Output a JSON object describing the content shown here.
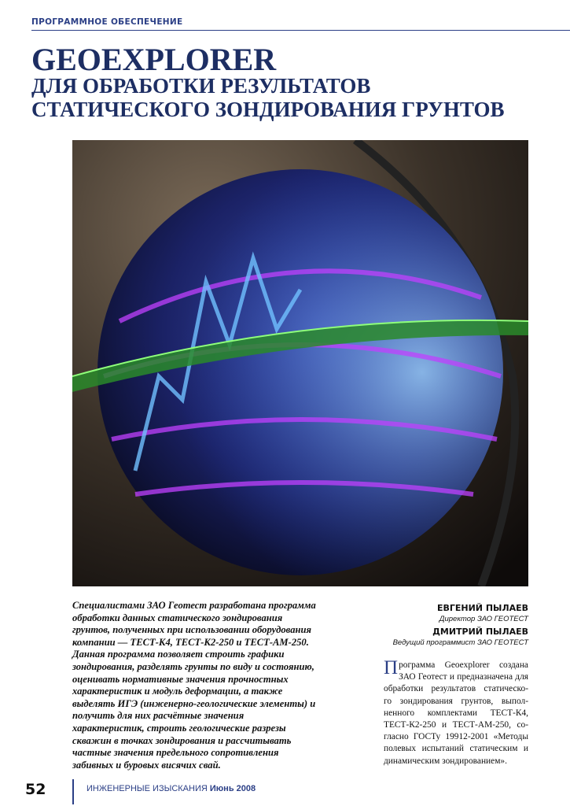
{
  "header": {
    "section": "ПРОГРАММНОЕ ОБЕСПЕЧЕНИЕ"
  },
  "title": {
    "main": "GEOEXPLORER",
    "lines": [
      "ДЛЯ ОБРАБОТКИ РЕЗУЛЬТАТОВ",
      "СТАТИЧЕСКОГО ЗОНДИРОВАНИЯ ГРУНТОВ"
    ]
  },
  "lead": {
    "lines": [
      "Специалистами ЗАО Геотест разработана программа",
      "обработки данных статического зондирования",
      "грунтов, полученных при использовании оборудования",
      "компании — ТЕСТ-К4, ТЕСТ-К2-250 и ТЕСТ-АМ-250.",
      "Данная программа позволяет строить графики",
      "зондирования, разделять грунты по виду и состоянию,",
      "оценивать нормативные значения прочностных",
      "характеристик и модуль деформации, а также",
      "выделять ИГЭ (инженерно-геологические элементы) и",
      "получить для них расчётные значения",
      "характеристик, строить геологические разрезы",
      "скважин в точках зондирования и рассчитывать",
      "частные значения предельного сопротивления",
      "забивных и буровых висячих свай."
    ]
  },
  "authors": [
    {
      "name": "ЕВГЕНИЙ ПЫЛАЕВ",
      "role": "Директор ЗАО ГЕОТЕСТ"
    },
    {
      "name": "ДМИТРИЙ ПЫЛАЕВ",
      "role": "Ведущий программист ЗАО ГЕОТЕСТ"
    }
  ],
  "body": {
    "drop_cap": "П",
    "lines": [
      "рограмма Geoexplorer создана",
      "ЗАО Геотест и предназначена для",
      "обработки результатов статическо-",
      "го зондирования грунтов, выпол-",
      "ненного комплектами ТЕСТ-К4,",
      "ТЕСТ-К2-250 и ТЕСТ-АМ-250, со-",
      "гласно ГОСТу 19912-2001 «Методы",
      "полевых испытаний статическим и",
      "динамическим зондированием»."
    ]
  },
  "footer": {
    "page": "52",
    "journal": "ИНЖЕНЕРНЫЕ ИЗЫСКАНИЯ",
    "issue": "Июнь 2008"
  }
}
